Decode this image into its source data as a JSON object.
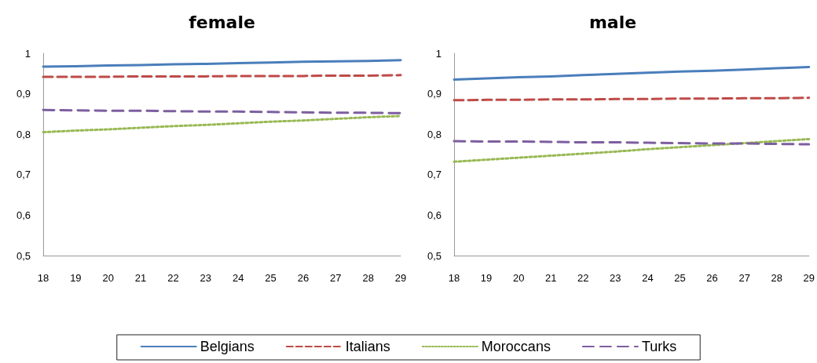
{
  "chart_data": [
    {
      "type": "line",
      "title": "female",
      "categories": [
        "18",
        "19",
        "20",
        "21",
        "22",
        "23",
        "24",
        "25",
        "26",
        "27",
        "28",
        "29"
      ],
      "series": [
        {
          "name": "Belgians",
          "color": "#4a7ebb",
          "line_style": "solid",
          "values": [
            0.967,
            0.968,
            0.97,
            0.971,
            0.973,
            0.974,
            0.976,
            0.977,
            0.979,
            0.98,
            0.981,
            0.983
          ]
        },
        {
          "name": "Italians",
          "color": "#be4b48",
          "line_style": "dashed",
          "values": [
            0.942,
            0.942,
            0.942,
            0.943,
            0.943,
            0.943,
            0.944,
            0.944,
            0.944,
            0.945,
            0.945,
            0.946
          ]
        },
        {
          "name": "Moroccans",
          "color": "#98b954",
          "line_style": "dotted",
          "values": [
            0.805,
            0.809,
            0.812,
            0.816,
            0.82,
            0.823,
            0.827,
            0.831,
            0.834,
            0.838,
            0.842,
            0.845
          ]
        },
        {
          "name": "Turks",
          "color": "#7d5fa0",
          "line_style": "dashed",
          "values": [
            0.86,
            0.859,
            0.858,
            0.858,
            0.857,
            0.856,
            0.856,
            0.855,
            0.854,
            0.853,
            0.853,
            0.852
          ]
        }
      ],
      "ylim": [
        0.5,
        1
      ],
      "yticks": [
        {
          "value": 0.5,
          "label": "0,5"
        },
        {
          "value": 0.6,
          "label": "0,6"
        },
        {
          "value": 0.7,
          "label": "0,7"
        },
        {
          "value": 0.8,
          "label": "0,8"
        },
        {
          "value": 0.9,
          "label": "0,9"
        },
        1
      ],
      "grid": false,
      "marker": "none",
      "legend": "bottom"
    },
    {
      "type": "line",
      "title": "male",
      "categories": [
        "18",
        "19",
        "20",
        "21",
        "22",
        "23",
        "24",
        "25",
        "26",
        "27",
        "28",
        "29"
      ],
      "series": [
        {
          "color": "#4a7ebb",
          "line_style": "solid",
          "values": [
            0.935,
            0.938,
            0.941,
            0.943,
            0.946,
            0.949,
            0.952,
            0.955,
            0.957,
            0.96,
            0.963,
            0.966
          ]
        },
        {
          "color": "#be4b48",
          "line_style": "dashed",
          "values": [
            0.884,
            0.885,
            0.885,
            0.886,
            0.886,
            0.887,
            0.887,
            0.888,
            0.888,
            0.889,
            0.889,
            0.89
          ]
        },
        {
          "color": "#98b954",
          "line_style": "dotted",
          "values": [
            0.732,
            0.737,
            0.742,
            0.747,
            0.752,
            0.757,
            0.763,
            0.768,
            0.773,
            0.778,
            0.783,
            0.788
          ]
        },
        {
          "color": "#7d5fa0",
          "line_style": "dashed",
          "values": [
            0.783,
            0.782,
            0.782,
            0.781,
            0.78,
            0.78,
            0.779,
            0.778,
            0.777,
            0.777,
            0.776,
            0.775
          ]
        }
      ],
      "ylim": [
        0.5,
        1
      ],
      "yticks": [
        {
          "value": 0.5,
          "label": "0,5"
        },
        {
          "value": 0.6,
          "label": "0,6"
        },
        {
          "value": 0.7,
          "label": "0,7"
        },
        {
          "value": 0.8,
          "label": "0,8"
        },
        {
          "value": 0.9,
          "label": "0,9"
        },
        1
      ],
      "grid": false,
      "marker": "none"
    }
  ]
}
